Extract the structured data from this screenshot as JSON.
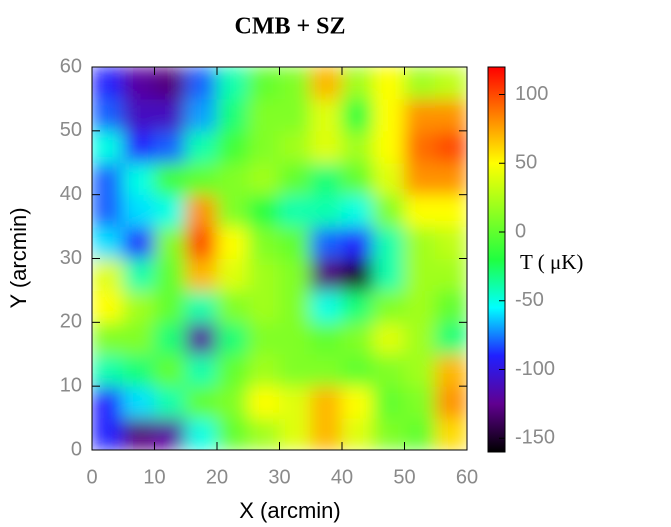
{
  "chart_data": {
    "type": "heatmap",
    "title": "CMB + SZ",
    "x_label": "X (arcmin)",
    "y_label": "Y (arcmin)",
    "colorbar_label": "T ( μK)",
    "xlim": [
      0,
      60
    ],
    "ylim": [
      0,
      60
    ],
    "xticks": [
      0,
      10,
      20,
      30,
      40,
      50,
      60
    ],
    "yticks": [
      0,
      10,
      20,
      30,
      40,
      50,
      60
    ],
    "clim": [
      -160,
      120
    ],
    "cticks": [
      -150,
      -100,
      -50,
      0,
      50,
      100
    ],
    "colormap": [
      "#000000",
      "#600090",
      "#2020ff",
      "#00ffff",
      "#20ff40",
      "#90ff20",
      "#ffff00",
      "#ff8000",
      "#ff0000"
    ],
    "z": [
      [
        -90,
        -130,
        -120,
        -50,
        0,
        20,
        40,
        70,
        40,
        10,
        0,
        60
      ],
      [
        -90,
        -60,
        -40,
        0,
        10,
        50,
        40,
        70,
        50,
        0,
        10,
        80
      ],
      [
        -40,
        -30,
        0,
        -40,
        0,
        20,
        10,
        10,
        0,
        10,
        20,
        70
      ],
      [
        10,
        10,
        -30,
        -120,
        -30,
        10,
        10,
        0,
        10,
        40,
        20,
        -30
      ],
      [
        50,
        20,
        0,
        -40,
        10,
        20,
        10,
        -50,
        -30,
        10,
        20,
        0
      ],
      [
        40,
        -40,
        0,
        70,
        40,
        20,
        10,
        -130,
        -150,
        -40,
        20,
        20
      ],
      [
        -60,
        -90,
        10,
        100,
        50,
        10,
        0,
        -80,
        -90,
        -40,
        20,
        30
      ],
      [
        -80,
        -60,
        -50,
        80,
        10,
        -20,
        -40,
        -40,
        -50,
        10,
        50,
        50
      ],
      [
        -80,
        -50,
        -10,
        0,
        10,
        20,
        0,
        -30,
        0,
        40,
        80,
        80
      ],
      [
        -50,
        -90,
        -80,
        -40,
        -10,
        10,
        20,
        40,
        20,
        50,
        90,
        100
      ],
      [
        -80,
        -110,
        -110,
        -70,
        -30,
        10,
        10,
        40,
        -20,
        50,
        80,
        80
      ],
      [
        -90,
        -120,
        -130,
        -80,
        -40,
        0,
        10,
        70,
        20,
        50,
        20,
        30
      ]
    ]
  }
}
